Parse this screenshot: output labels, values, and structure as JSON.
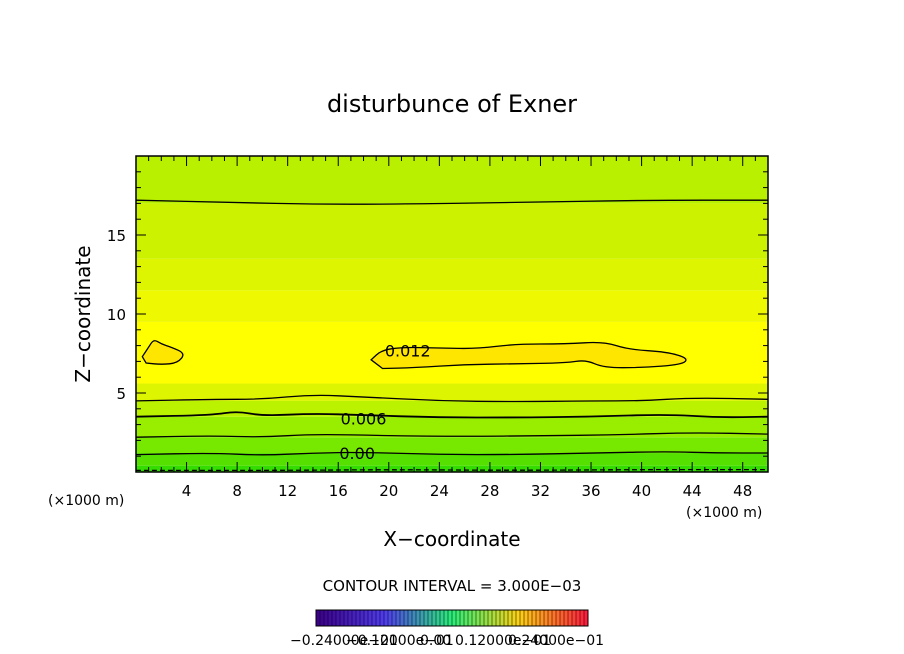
{
  "chart_data": {
    "type": "heatmap",
    "title": "disturbunce of Exner",
    "xlabel": "X−coordinate",
    "ylabel": "Z−coordinate",
    "x_unit": "(×1000 m)",
    "z_unit": "(×1000 m)",
    "xlim": [
      0,
      50
    ],
    "ylim": [
      0,
      20
    ],
    "x_ticks": [
      4,
      8,
      12,
      16,
      20,
      24,
      28,
      32,
      36,
      40,
      44,
      48
    ],
    "y_ticks": [
      5,
      10,
      15
    ],
    "contour_labels": [
      {
        "text": "0.012",
        "x": 21.5,
        "z": 7.7
      },
      {
        "text": "0.006",
        "x": 18.0,
        "z": 3.4
      },
      {
        "text": "0.00",
        "x": 17.5,
        "z": 1.2
      }
    ],
    "contour_lines": [
      {
        "level": -0.003,
        "style": "dashed",
        "points": [
          [
            0,
            0.1
          ],
          [
            12,
            0.1
          ],
          [
            20,
            0.15
          ],
          [
            30,
            0.1
          ],
          [
            40,
            0.15
          ],
          [
            50,
            0.15
          ]
        ]
      },
      {
        "level": 0.0,
        "style": "solid",
        "points": [
          [
            0,
            1.1
          ],
          [
            6,
            1.2
          ],
          [
            10,
            1.05
          ],
          [
            14,
            1.2
          ],
          [
            18,
            1.25
          ],
          [
            24,
            1.1
          ],
          [
            30,
            1.1
          ],
          [
            36,
            1.2
          ],
          [
            42,
            1.3
          ],
          [
            46,
            1.2
          ],
          [
            50,
            1.2
          ]
        ]
      },
      {
        "level": 0.003,
        "style": "solid",
        "points": [
          [
            0,
            2.2
          ],
          [
            6,
            2.3
          ],
          [
            10,
            2.2
          ],
          [
            14,
            2.4
          ],
          [
            20,
            2.3
          ],
          [
            26,
            2.25
          ],
          [
            32,
            2.3
          ],
          [
            38,
            2.35
          ],
          [
            44,
            2.5
          ],
          [
            50,
            2.4
          ]
        ]
      },
      {
        "level": 0.006,
        "style": "solid",
        "points": [
          [
            0,
            3.5
          ],
          [
            6,
            3.6
          ],
          [
            8,
            3.85
          ],
          [
            10,
            3.55
          ],
          [
            14,
            3.7
          ],
          [
            18,
            3.6
          ],
          [
            24,
            3.45
          ],
          [
            30,
            3.45
          ],
          [
            36,
            3.5
          ],
          [
            42,
            3.65
          ],
          [
            46,
            3.45
          ],
          [
            50,
            3.5
          ]
        ]
      },
      {
        "level": 0.009,
        "style": "solid",
        "points": [
          [
            0,
            4.5
          ],
          [
            6,
            4.6
          ],
          [
            10,
            4.6
          ],
          [
            14,
            4.9
          ],
          [
            18,
            4.75
          ],
          [
            24,
            4.5
          ],
          [
            30,
            4.45
          ],
          [
            36,
            4.5
          ],
          [
            40,
            4.5
          ],
          [
            44,
            4.7
          ],
          [
            50,
            4.6
          ]
        ]
      },
      {
        "level": 0.012,
        "style": "solid",
        "closed": true,
        "points": [
          [
            0.5,
            7.3
          ],
          [
            1,
            7.9
          ],
          [
            1.4,
            8.4
          ],
          [
            2,
            8.1
          ],
          [
            2.8,
            7.9
          ],
          [
            3.9,
            7.5
          ],
          [
            3.3,
            6.9
          ],
          [
            2,
            6.8
          ],
          [
            0.8,
            6.9
          ]
        ]
      },
      {
        "level": 0.012,
        "style": "solid",
        "closed": true,
        "points": [
          [
            18.6,
            7.1
          ],
          [
            19.4,
            7.7
          ],
          [
            21,
            7.9
          ],
          [
            24,
            7.85
          ],
          [
            27,
            7.8
          ],
          [
            30,
            8.1
          ],
          [
            34,
            8.1
          ],
          [
            37,
            8.25
          ],
          [
            39,
            7.75
          ],
          [
            42,
            7.6
          ],
          [
            43.7,
            7.2
          ],
          [
            43.2,
            6.8
          ],
          [
            40,
            6.6
          ],
          [
            37,
            6.6
          ],
          [
            35.6,
            7.1
          ],
          [
            34,
            6.9
          ],
          [
            30,
            6.85
          ],
          [
            26,
            6.8
          ],
          [
            22,
            6.6
          ],
          [
            19.5,
            6.55
          ]
        ]
      },
      {
        "level": 0.006,
        "style": "solid",
        "points": [
          [
            0,
            17.2
          ],
          [
            8,
            17.05
          ],
          [
            14,
            16.95
          ],
          [
            20,
            16.95
          ],
          [
            30,
            17.05
          ],
          [
            40,
            17.2
          ],
          [
            50,
            17.2
          ]
        ]
      }
    ],
    "fill_bands": [
      {
        "top": 0.4,
        "color": "#33dd00"
      },
      {
        "top": 1.2,
        "color": "#55e000"
      },
      {
        "top": 2.2,
        "color": "#77e800"
      },
      {
        "top": 3.5,
        "color": "#99ee00"
      },
      {
        "top": 4.5,
        "color": "#bbf200"
      },
      {
        "top": 5.6,
        "color": "#ddf500"
      },
      {
        "top": 9.5,
        "color": "#ffff00"
      },
      {
        "top": 11.5,
        "color": "#eef800"
      },
      {
        "top": 13.5,
        "color": "#ddf500"
      },
      {
        "top": 17.0,
        "color": "#ccf200"
      },
      {
        "top": 20.0,
        "color": "#b9f000"
      }
    ],
    "inner_fill_color": "#ffe600",
    "colorbar": {
      "labels": "−0.24000e−01",
      "overlapped_labels": [
        "−0.24000e−01",
        "−0.12000e−01",
        "0.00",
        "0.12000e−01",
        "0.24000e−01"
      ]
    },
    "contour_interval_text": "CONTOUR INTERVAL = 3.000E−03",
    "grid": false
  }
}
